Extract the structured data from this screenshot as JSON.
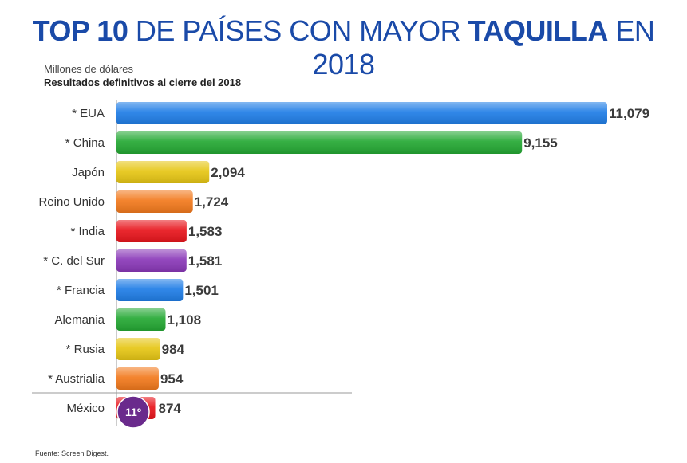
{
  "header": {
    "title_part1": "TOP 10",
    "title_part2": " DE PAÍSES CON MAYOR ",
    "title_part3": "TAQUILLA",
    "title_part4": " EN 2018",
    "unit_label": "Millones de dólares",
    "subtitle": "Resultados definitivos al cierre del 2018"
  },
  "footer": {
    "source": "Fuente: Screen Digest."
  },
  "chart_data": {
    "type": "bar",
    "orientation": "horizontal",
    "categories": [
      "* EUA",
      "* China",
      "Japón",
      "Reino Unido",
      "* India",
      "* C. del Sur",
      "* Francia",
      "Alemania",
      "* Rusia",
      "* Austrialia",
      "México"
    ],
    "values": [
      11079,
      9155,
      2094,
      1724,
      1583,
      1581,
      1501,
      1108,
      984,
      954,
      874
    ],
    "value_labels": [
      "11,079",
      "9,155",
      "2,094",
      "1,724",
      "1,583",
      "1,581",
      "1,501",
      "1,108",
      "984",
      "954",
      "874"
    ],
    "colors": [
      "#1f7de6",
      "#24a833",
      "#e6c614",
      "#f2791c",
      "#e8151c",
      "#8a38b8",
      "#1f7de6",
      "#24a833",
      "#e6c614",
      "#f2791c",
      "#e8151c"
    ],
    "xlim": [
      0,
      11079
    ],
    "title": "TOP 10 DE PAÍSES CON MAYOR TAQUILLA EN 2018",
    "xlabel": "",
    "ylabel": "",
    "highlight": {
      "category": "México",
      "badge": "11º",
      "badge_color": "#6a2a8c"
    },
    "grid": false,
    "legend": "none"
  }
}
